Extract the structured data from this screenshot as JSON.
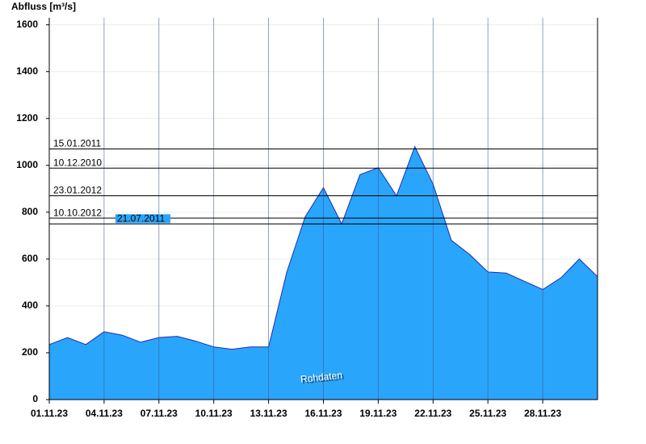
{
  "chart_data": {
    "type": "area",
    "y_axis_label": "Abfluss [m³/s]",
    "x": [
      "2023-11-01",
      "2023-11-02",
      "2023-11-03",
      "2023-11-04",
      "2023-11-05",
      "2023-11-06",
      "2023-11-07",
      "2023-11-08",
      "2023-11-09",
      "2023-11-10",
      "2023-11-11",
      "2023-11-12",
      "2023-11-13",
      "2023-11-14",
      "2023-11-15",
      "2023-11-16",
      "2023-11-17",
      "2023-11-18",
      "2023-11-19",
      "2023-11-20",
      "2023-11-21",
      "2023-11-22",
      "2023-11-23",
      "2023-11-24",
      "2023-11-25",
      "2023-11-26",
      "2023-11-27",
      "2023-11-28",
      "2023-11-29",
      "2023-11-30",
      "2023-12-01"
    ],
    "values": [
      235,
      265,
      235,
      290,
      275,
      245,
      265,
      270,
      250,
      225,
      215,
      225,
      225,
      545,
      780,
      905,
      750,
      960,
      990,
      870,
      1080,
      920,
      680,
      620,
      545,
      540,
      505,
      470,
      520,
      600,
      525
    ],
    "color": "#2aa5fc",
    "line_color": "#1a2fb0",
    "xlim": [
      "2023-11-01",
      "2023-12-01"
    ],
    "xticks": [
      {
        "value": "2023-11-01",
        "label": "01.11.23"
      },
      {
        "value": "2023-11-04",
        "label": "04.11.23"
      },
      {
        "value": "2023-11-07",
        "label": "07.11.23"
      },
      {
        "value": "2023-11-10",
        "label": "10.11.23"
      },
      {
        "value": "2023-11-13",
        "label": "13.11.23"
      },
      {
        "value": "2023-11-16",
        "label": "16.11.23"
      },
      {
        "value": "2023-11-19",
        "label": "19.11.23"
      },
      {
        "value": "2023-11-22",
        "label": "22.11.23"
      },
      {
        "value": "2023-11-25",
        "label": "25.11.23"
      },
      {
        "value": "2023-11-28",
        "label": "28.11.23"
      }
    ],
    "ylim": [
      0,
      1630
    ],
    "yticks": [
      0,
      200,
      400,
      600,
      800,
      1000,
      1200,
      1400,
      1600
    ],
    "grid": true,
    "reference_lines": [
      {
        "label": "15.01.2011",
        "value": 1070
      },
      {
        "label": "10.12.2010",
        "value": 988
      },
      {
        "label": "23.01.2012",
        "value": 870
      },
      {
        "label": "10.10.2012",
        "value": 775
      },
      {
        "label": "21.07.2011",
        "value": 750
      }
    ],
    "annotation": "Rohdaten"
  }
}
